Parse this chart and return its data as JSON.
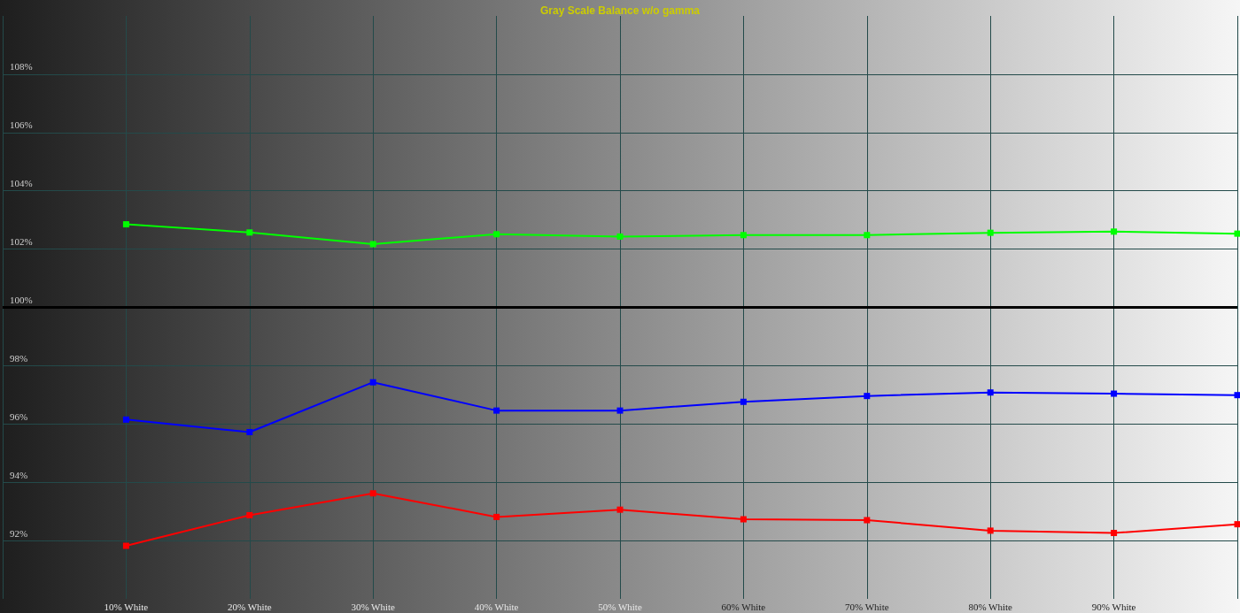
{
  "chart_data": {
    "type": "line",
    "title": "Gray Scale Balance w/o gamma",
    "categories": [
      null,
      "10% White",
      "20% White",
      "30% White",
      "40% White",
      "50% White",
      "60% White",
      "70% White",
      "80% White",
      "90% White",
      null
    ],
    "series": [
      {
        "color": "#00ff00",
        "values": [
          null,
          102.85,
          102.57,
          102.17,
          102.51,
          102.43,
          102.48,
          102.48,
          102.56,
          102.6,
          102.53
        ]
      },
      {
        "color": "#0000ff",
        "values": [
          null,
          96.15,
          95.72,
          97.43,
          96.46,
          96.46,
          96.76,
          96.96,
          97.08,
          97.04,
          96.99
        ]
      },
      {
        "color": "#ff0000",
        "values": [
          null,
          91.82,
          92.87,
          93.62,
          92.81,
          93.06,
          92.73,
          92.7,
          92.34,
          92.26,
          92.56
        ]
      }
    ],
    "ylim": [
      90,
      110
    ],
    "yticks": [
      {
        "value": 92,
        "label": "92%"
      },
      {
        "value": 94,
        "label": "94%"
      },
      {
        "value": 96,
        "label": "96%"
      },
      {
        "value": 98,
        "label": "98%"
      },
      {
        "value": 100,
        "label": "100%"
      },
      {
        "value": 102,
        "label": "102%"
      },
      {
        "value": 104,
        "label": "104%"
      },
      {
        "value": 106,
        "label": "106%"
      },
      {
        "value": 108,
        "label": "108%"
      }
    ],
    "ref_lines": [
      {
        "axis": "y",
        "value": 100,
        "color": "#000000"
      }
    ],
    "grid": true,
    "marker": "square",
    "line_style": "solid"
  }
}
